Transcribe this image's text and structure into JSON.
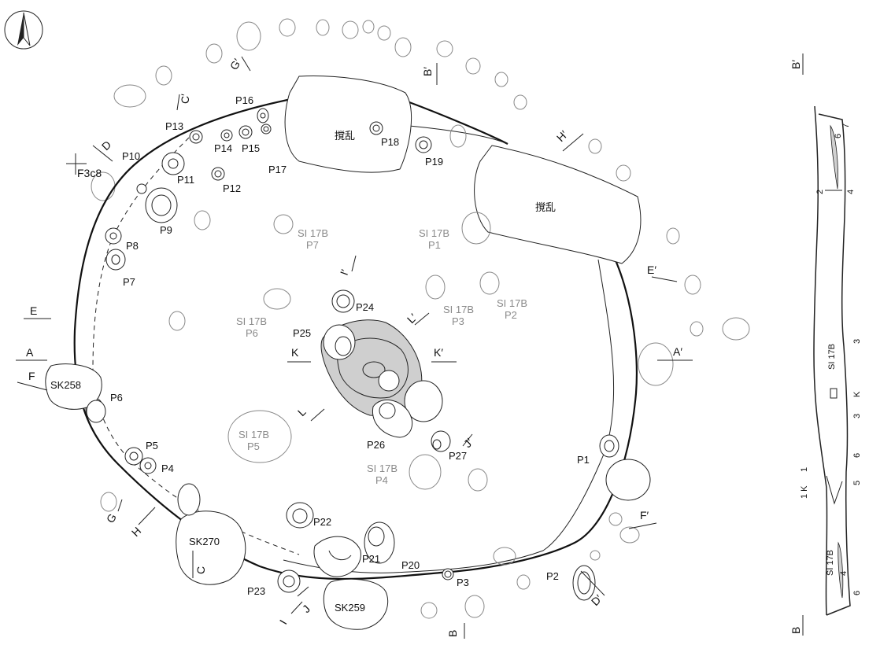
{
  "features": {
    "pits": [
      "P1",
      "P2",
      "P3",
      "P4",
      "P5",
      "P6",
      "P7",
      "P8",
      "P9",
      "P10",
      "P11",
      "P12",
      "P13",
      "P14",
      "P15",
      "P16",
      "P17",
      "P18",
      "P19",
      "P20",
      "P21",
      "P22",
      "P23",
      "P24",
      "P25",
      "P26",
      "P27"
    ],
    "sk": [
      "SK258",
      "SK270",
      "SK259"
    ],
    "disturbance": "撹乱",
    "grid": "F3c8",
    "overlap_si": [
      {
        "top": "SI 17B",
        "bottom": "P1"
      },
      {
        "top": "SI 17B",
        "bottom": "P2"
      },
      {
        "top": "SI 17B",
        "bottom": "P3"
      },
      {
        "top": "SI 17B",
        "bottom": "P4"
      },
      {
        "top": "SI 17B",
        "bottom": "P5"
      },
      {
        "top": "SI 17B",
        "bottom": "P6"
      },
      {
        "top": "SI 17B",
        "bottom": "P7"
      }
    ]
  },
  "section_marks": {
    "A": "A",
    "A_": "A′",
    "B": "B",
    "B_": "B′",
    "C": "C",
    "C_": "C′",
    "D": "D",
    "D_": "D′",
    "E": "E",
    "E_": "E′",
    "F": "F",
    "F_": "F′",
    "G": "G",
    "G_": "G′",
    "H": "H",
    "H_": "H′",
    "I": "I",
    "I_": "I′",
    "J": "J",
    "J_": "J′",
    "K": "K",
    "K_": "K′",
    "L": "L",
    "L_": "L′"
  },
  "profile": {
    "top": "B′",
    "bottom": "B",
    "si": "SI 17B",
    "layers": [
      "7",
      "6",
      "4",
      "2",
      "3",
      "K",
      "3",
      "6",
      "5",
      "1",
      "1 K",
      "6",
      "4"
    ]
  }
}
